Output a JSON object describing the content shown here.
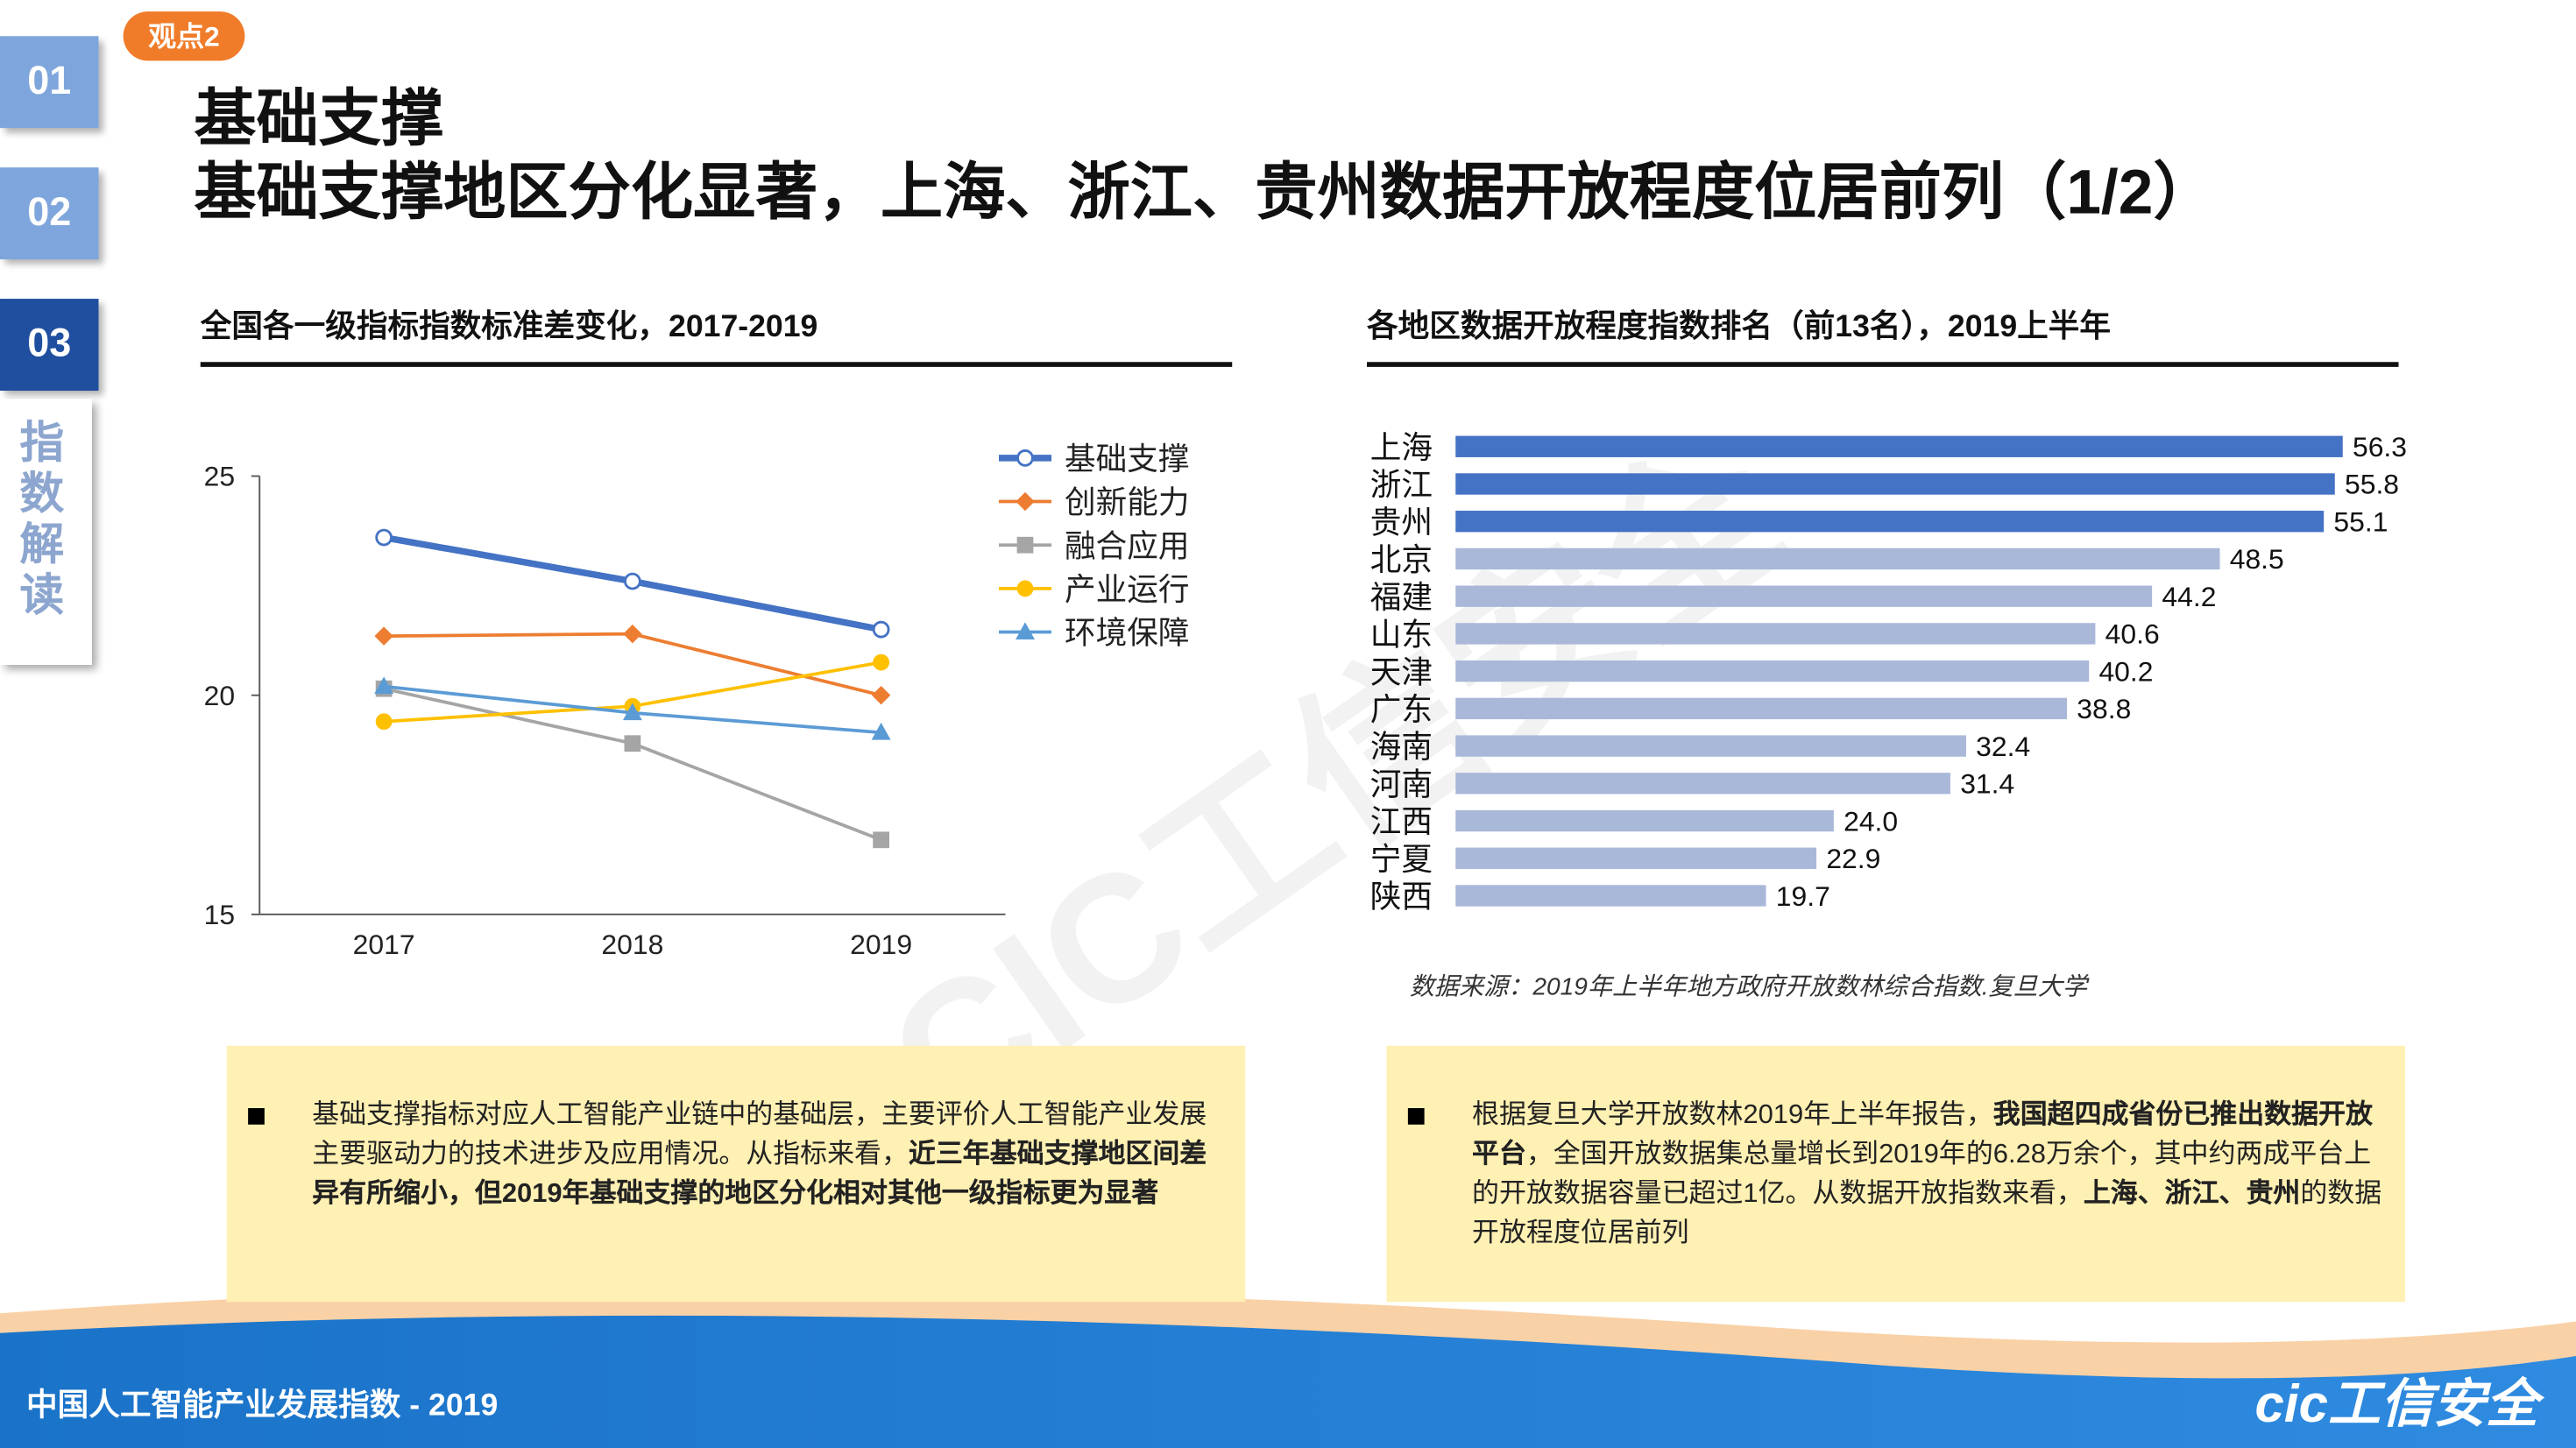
{
  "badge": "观点2",
  "nav": {
    "tabs": [
      "01",
      "02",
      "03"
    ],
    "active": 2,
    "section": "指数解读"
  },
  "title": {
    "line1": "基础支撑",
    "line2": "基础支撑地区分化显著，上海、浙江、贵州数据开放程度位居前列（1/2）"
  },
  "chart_data": [
    {
      "type": "line",
      "title": "全国各一级指标指数标准差变化，2017-2019",
      "categories": [
        "2017",
        "2018",
        "2019"
      ],
      "ylim": [
        15,
        25
      ],
      "yticks": [
        15,
        20,
        25
      ],
      "grid": false,
      "legend": "upper right",
      "series": [
        {
          "name": "基础支撑",
          "color": "#4472c4",
          "marker": "circle-open",
          "highlight": true,
          "values": [
            23.6,
            22.6,
            21.5
          ]
        },
        {
          "name": "创新能力",
          "color": "#ed7d31",
          "marker": "diamond",
          "values": [
            21.35,
            21.4,
            20.0
          ]
        },
        {
          "name": "融合应用",
          "color": "#a5a5a5",
          "marker": "square",
          "values": [
            20.15,
            18.9,
            16.7
          ]
        },
        {
          "name": "产业运行",
          "color": "#ffc000",
          "marker": "circle",
          "values": [
            19.4,
            19.75,
            20.75
          ]
        },
        {
          "name": "环境保障",
          "color": "#5b9bd5",
          "marker": "triangle",
          "values": [
            20.2,
            19.6,
            19.15
          ]
        }
      ]
    },
    {
      "type": "barh",
      "title": "各地区数据开放程度指数排名（前13名），2019上半年",
      "categories": [
        "上海",
        "浙江",
        "贵州",
        "北京",
        "福建",
        "山东",
        "天津",
        "广东",
        "海南",
        "河南",
        "江西",
        "宁夏",
        "陕西"
      ],
      "values": [
        56.3,
        55.8,
        55.1,
        48.5,
        44.2,
        40.6,
        40.2,
        38.8,
        32.4,
        31.4,
        24.0,
        22.9,
        19.7
      ],
      "value_labels": [
        "56.3",
        "55.8",
        "55.1",
        "48.5",
        "44.2",
        "40.6",
        "40.2",
        "38.8",
        "32.4",
        "31.4",
        "24.0",
        "22.9",
        "19.7"
      ],
      "colors": [
        "#4472c4",
        "#4472c4",
        "#4472c4",
        "#a9b8d9",
        "#a9b8d9",
        "#a9b8d9",
        "#a9b8d9",
        "#a9b8d9",
        "#a9b8d9",
        "#a9b8d9",
        "#a9b8d9",
        "#a9b8d9",
        "#a9b8d9"
      ],
      "source": "数据来源：2019年上半年地方政府开放数林综合指数.复旦大学"
    }
  ],
  "notes": [
    {
      "segments": [
        {
          "text": "基础支撑指标对应人工智能产业链中的基础层，主要评价人工智能产业发展主要驱动力的技术进步及应用情况。从指标来看，",
          "bold": false
        },
        {
          "text": "近三年基础支撑地区间差异有所缩小，但2019年基础支撑的地区分化相对其他一级指标更为显著",
          "bold": true
        }
      ]
    },
    {
      "segments": [
        {
          "text": "根据复旦大学开放数林2019年上半年报告，",
          "bold": false
        },
        {
          "text": "我国超四成省份已推出数据开放平台",
          "bold": true
        },
        {
          "text": "，全国开放数据集总量增长到2019年的6.28万余个，其中约两成平台上的开放数据容量已超过1亿。从数据开放指数来看，",
          "bold": false
        },
        {
          "text": "上海、浙江、贵州",
          "bold": true
        },
        {
          "text": "的数据开放程度位居前列",
          "bold": false
        }
      ]
    }
  ],
  "watermark": "CIC工信安全",
  "footer": {
    "text": "中国人工智能产业发展指数 - 2019",
    "logo": "cic工信安全"
  }
}
